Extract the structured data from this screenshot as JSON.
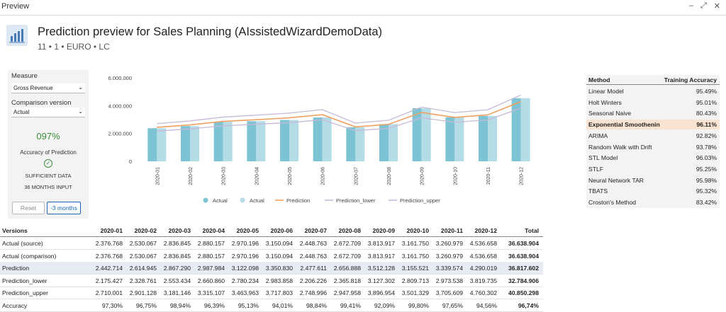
{
  "window": {
    "title": "Preview"
  },
  "header": {
    "title": "Prediction preview for Sales Planning (AIssistedWizardDemoData)",
    "subtitle": "11 • 1 • EURO • LC"
  },
  "controls": {
    "measure_label": "Measure",
    "measure_value": "Gross Revenue",
    "comparison_label": "Comparison version",
    "comparison_value": "Actual",
    "accuracy_value": "097%",
    "accuracy_label": "Accuracy of Prediction",
    "sufficient": "SUFFICIENT DATA",
    "input": "36 MONTHS INPUT",
    "reset": "Reset",
    "months": "-3 months"
  },
  "colors": {
    "actual": "#7cc3d3",
    "actual_comparison": "#b3dce6",
    "prediction": "#f0a060",
    "bounds": "#c8b8d8",
    "highlight": "#fbe3d1",
    "accent": "#1a66b3"
  },
  "chart_data": {
    "type": "bar",
    "categories": [
      "2020-01",
      "2020-02",
      "2020-03",
      "2020-04",
      "2020-05",
      "2020-06",
      "2020-07",
      "2020-08",
      "2020-09",
      "2020-10",
      "2020-11",
      "2020-12"
    ],
    "y_ticks": [
      "6.000.000",
      "4.000.000",
      "2.000.000",
      "0"
    ],
    "ylim": [
      0,
      6000000
    ],
    "series": [
      {
        "name": "Actual",
        "type": "bar",
        "values": [
          2376768,
          2530067,
          2836845,
          2880157,
          2970196,
          3150094,
          2448763,
          2672709,
          3813917,
          3161750,
          3260979,
          4536658
        ]
      },
      {
        "name": "Actual",
        "type": "bar",
        "values": [
          2376768,
          2530067,
          2836845,
          2880157,
          2970196,
          3150094,
          2448763,
          2672709,
          3813917,
          3161750,
          3260979,
          4536658
        ]
      },
      {
        "name": "Prediction",
        "type": "line",
        "values": [
          2442714,
          2614945,
          2867290,
          2987984,
          3122098,
          3350830,
          2477611,
          2656888,
          3512128,
          3155521,
          3339574,
          4290019
        ]
      },
      {
        "name": "Prediction_lower",
        "type": "line",
        "values": [
          2175427,
          2328761,
          2553434,
          2660860,
          2780234,
          2983858,
          2206226,
          2365818,
          3127302,
          2809713,
          2973538,
          3819735
        ]
      },
      {
        "name": "Prediction_upper",
        "type": "line",
        "values": [
          2710001,
          2901128,
          3181146,
          3315107,
          3463963,
          3717803,
          2748996,
          2947958,
          3896954,
          3501329,
          3705609,
          4760302
        ]
      }
    ],
    "legend_position": "bottom"
  },
  "methods": {
    "header": [
      "Method",
      "Training Accuracy"
    ],
    "rows": [
      [
        "Linear Model",
        "95.49%"
      ],
      [
        "Holt Winters",
        "95.01%"
      ],
      [
        "Seasonal Naive",
        "80.43%"
      ],
      [
        "Exponential Smoothenin",
        "96.11%"
      ],
      [
        "ARIMA",
        "92.82%"
      ],
      [
        "Random Walk with Drift",
        "93.78%"
      ],
      [
        "STL Model",
        "96.03%"
      ],
      [
        "STLF",
        "95.25%"
      ],
      [
        "Neural Network TAR",
        "95.98%"
      ],
      [
        "TBATS",
        "95.32%"
      ],
      [
        "Croston's Method",
        "83.42%"
      ]
    ]
  },
  "table": {
    "header": [
      "Versions",
      "2020-01",
      "2020-02",
      "2020-03",
      "2020-04",
      "2020-05",
      "2020-06",
      "2020-07",
      "2020-08",
      "2020-09",
      "2020-10",
      "2020-11",
      "2020-12",
      "Total"
    ],
    "rows": [
      [
        "Actual (source)",
        "2.376.768",
        "2.530.067",
        "2.836.845",
        "2.880.157",
        "2.970.196",
        "3.150.094",
        "2.448.763",
        "2.672.709",
        "3.813.917",
        "3.161.750",
        "3.260.979",
        "4.536.658",
        "36.638.904"
      ],
      [
        "Actual (comparison)",
        "2.376.768",
        "2.530.067",
        "2.836.845",
        "2.880.157",
        "2.970.196",
        "3.150.094",
        "2.448.763",
        "2.672.709",
        "3.813.917",
        "3.161.750",
        "3.260.979",
        "4.536.658",
        "36.638.904"
      ],
      [
        "Prediction",
        "2.442.714",
        "2.614.945",
        "2.867.290",
        "2.987.984",
        "3.122.098",
        "3.350.830",
        "2.477.611",
        "2.656.888",
        "3.512.128",
        "3.155.521",
        "3.339.574",
        "4.290.019",
        "36.817.602"
      ],
      [
        "Prediction_lower",
        "2.175.427",
        "2.328.761",
        "2.553.434",
        "2.660.860",
        "2.780.234",
        "2.983.858",
        "2.206.226",
        "2.365.818",
        "3.127.302",
        "2.809.713",
        "2.973.538",
        "3.819.735",
        "32.784.906"
      ],
      [
        "Prediction_upper",
        "2.710.001",
        "2.901.128",
        "3.181.146",
        "3.315.107",
        "3.463.963",
        "3.717.803",
        "2.748.996",
        "2.947.958",
        "3.896.954",
        "3.501.329",
        "3.705.609",
        "4.760.302",
        "40.850.298"
      ],
      [
        "Accuracy",
        "97,30%",
        "96,75%",
        "98,94%",
        "96,39%",
        "95,13%",
        "94,01%",
        "98,84%",
        "99,41%",
        "92,09%",
        "99,80%",
        "97,65%",
        "94,56%",
        "96,74%"
      ]
    ]
  }
}
